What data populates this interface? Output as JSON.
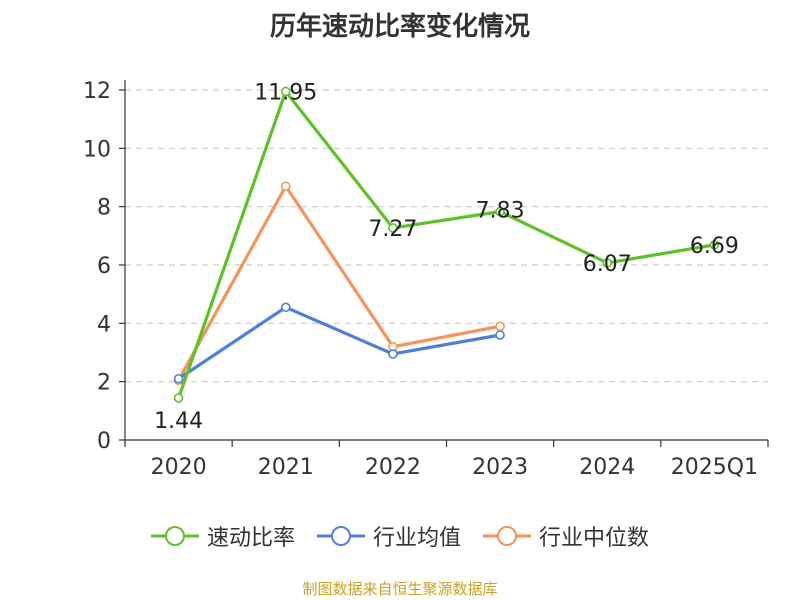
{
  "chart_data": {
    "type": "line",
    "title": "历年速动比率变化情况",
    "categories": [
      "2020",
      "2021",
      "2022",
      "2023",
      "2024",
      "2025Q1"
    ],
    "ylim": [
      0,
      12
    ],
    "yticks": [
      0,
      2,
      4,
      6,
      8,
      10,
      12
    ],
    "grid": true,
    "legend_position": "bottom",
    "series": [
      {
        "name": "速动比率",
        "color": "#5ec226",
        "values": [
          1.44,
          11.95,
          7.27,
          7.83,
          6.07,
          6.69
        ],
        "labels": [
          "1.44",
          "11.95",
          "7.27",
          "7.83",
          "6.07",
          "6.69"
        ]
      },
      {
        "name": "行业均值",
        "color": "#4f7fd9",
        "values": [
          2.1,
          4.55,
          2.95,
          3.6,
          null,
          null
        ]
      },
      {
        "name": "行业中位数",
        "color": "#f5935a",
        "values": [
          2.05,
          8.7,
          3.2,
          3.9,
          null,
          null
        ]
      }
    ]
  },
  "source": "制图数据来自恒生聚源数据库"
}
